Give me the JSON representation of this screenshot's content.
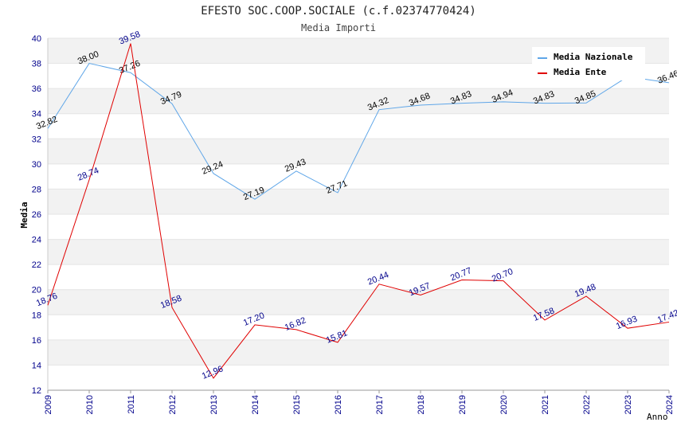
{
  "chart_data": {
    "type": "line",
    "title": "EFESTO SOC.COOP.SOCIALE (c.f.02374770424)",
    "subtitle": "Media Importi",
    "xlabel": "Anno",
    "ylabel": "Media",
    "ylim": [
      12,
      40
    ],
    "yticks": [
      "12",
      "14",
      "16",
      "18",
      "20",
      "22",
      "24",
      "26",
      "28",
      "30",
      "32",
      "34",
      "36",
      "38",
      "40"
    ],
    "categories": [
      "2009",
      "2010",
      "2011",
      "2012",
      "2013",
      "2014",
      "2015",
      "2016",
      "2017",
      "2018",
      "2019",
      "2020",
      "2021",
      "2022",
      "2023",
      "2024"
    ],
    "legend_position": "top-right",
    "series": [
      {
        "name": "Media Nazionale",
        "color": "#5fa6e8",
        "label_color": "#000000",
        "values": [
          32.82,
          38.0,
          37.26,
          34.79,
          29.24,
          27.19,
          29.43,
          27.71,
          34.32,
          34.68,
          34.83,
          34.94,
          34.83,
          34.85,
          36.94,
          36.46
        ],
        "labels": [
          "32.82",
          "38.00",
          "37.26",
          "34.79",
          "29.24",
          "27.19",
          "29.43",
          "27.71",
          "34.32",
          "34.68",
          "34.83",
          "34.94",
          "34.83",
          "34.85",
          "",
          "36.46"
        ]
      },
      {
        "name": "Media Ente",
        "color": "#e00000",
        "label_color": "#00008b",
        "values": [
          18.76,
          28.74,
          39.58,
          18.58,
          12.96,
          17.2,
          16.82,
          15.81,
          20.44,
          19.57,
          20.77,
          20.7,
          17.58,
          19.48,
          16.93,
          17.42
        ],
        "labels": [
          "18.76",
          "28.74",
          "39.58",
          "18.58",
          "12.96",
          "17.20",
          "16.82",
          "15.81",
          "20.44",
          "19.57",
          "20.77",
          "20.70",
          "17.58",
          "19.48",
          "16.93",
          "17.42"
        ]
      }
    ]
  }
}
